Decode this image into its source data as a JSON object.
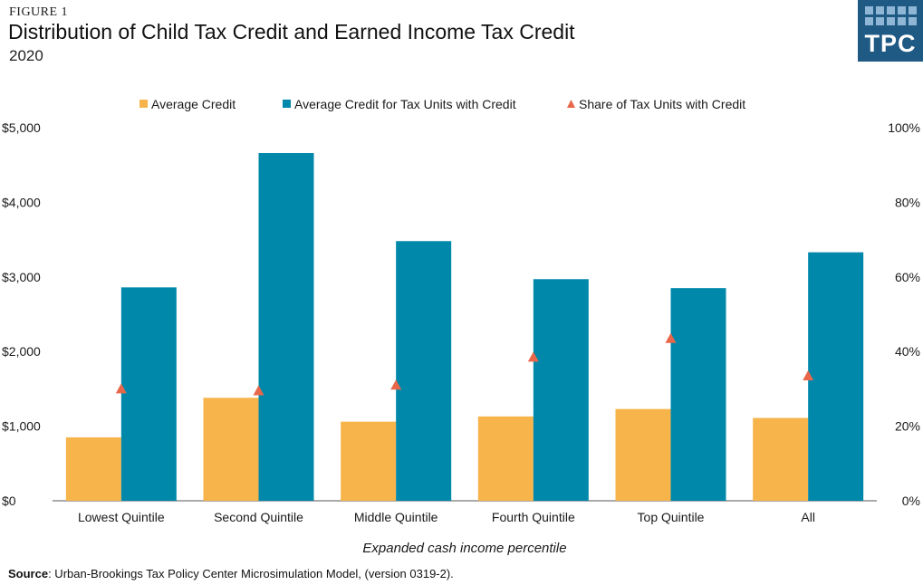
{
  "figure_label": "FIGURE 1",
  "logo_text": "TPC",
  "source": {
    "label": "Source",
    "text": ": Urban-Brookings Tax Policy Center Microsimulation Model, (version 0319-2)."
  },
  "colors": {
    "average_credit": "#f6b44b",
    "average_credit_tax_units": "#0088ab",
    "share_tax_units": "#e8674a",
    "logo_bg": "#1f5a84",
    "logo_square": "#8fb6d4"
  },
  "chart_data": {
    "type": "bar",
    "title": "Distribution of Child Tax Credit and Earned Income Tax Credit",
    "subtitle": "2020",
    "xlabel": "Expanded cash income percentile",
    "categories": [
      "Lowest Quintile",
      "Second Quintile",
      "Middle Quintile",
      "Fourth Quintile",
      "Top Quintile",
      "All"
    ],
    "series": [
      {
        "name": "Average Credit",
        "type": "bar",
        "axis": "left",
        "values": [
          850,
          1380,
          1060,
          1130,
          1230,
          1110
        ]
      },
      {
        "name": "Average Credit for Tax Units with Credit",
        "type": "bar",
        "axis": "left",
        "values": [
          2860,
          4660,
          3480,
          2970,
          2850,
          3330
        ]
      },
      {
        "name": "Share of Tax Units with Credit",
        "type": "scatter",
        "marker": "triangle",
        "axis": "right",
        "values": [
          30,
          29.5,
          31,
          38.5,
          43.5,
          33.5
        ]
      }
    ],
    "y_left": {
      "ylim": [
        0,
        5000
      ],
      "ticks": [
        "$0",
        "$1,000",
        "$2,000",
        "$3,000",
        "$4,000",
        "$5,000"
      ]
    },
    "y_right": {
      "ylim": [
        0,
        100
      ],
      "ticks": [
        "0%",
        "20%",
        "40%",
        "60%",
        "80%",
        "100%"
      ]
    },
    "legend_position": "top",
    "grid": false
  }
}
